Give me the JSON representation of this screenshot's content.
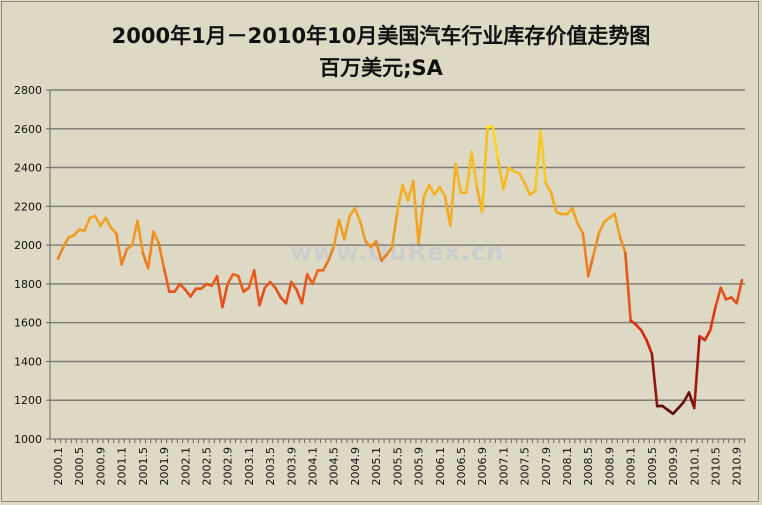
{
  "chart_data": {
    "type": "line",
    "title": "2000年1月－2010年10月美国汽车行业库存价值走势图",
    "subtitle": "百万美元;SA",
    "watermark": "www.QuRex.cn",
    "xlabel": "",
    "ylabel": "",
    "ylim": [
      1000,
      2800
    ],
    "yticks": [
      1000,
      1200,
      1400,
      1600,
      1800,
      2000,
      2200,
      2400,
      2600,
      2800
    ],
    "grid": true,
    "legend": "none",
    "x_start": "2000.1",
    "x_end": "2010.10",
    "xtick_labels": [
      "2000.1",
      "2000.5",
      "2000.9",
      "2001.1",
      "2001.5",
      "2001.9",
      "2002.1",
      "2002.5",
      "2002.9",
      "2003.1",
      "2003.5",
      "2003.9",
      "2004.1",
      "2004.5",
      "2004.9",
      "2005.1",
      "2005.5",
      "2005.9",
      "2006.1",
      "2006.5",
      "2006.9",
      "2007.1",
      "2007.5",
      "2007.9",
      "2008.1",
      "2008.5",
      "2008.9",
      "2009.1",
      "2009.5",
      "2009.9",
      "2010.1",
      "2010.5",
      "2010.9"
    ],
    "values": [
      1930,
      1990,
      2040,
      2050,
      2080,
      2075,
      2140,
      2150,
      2100,
      2140,
      2090,
      2060,
      1900,
      1980,
      2000,
      2125,
      1960,
      1880,
      2070,
      2010,
      1880,
      1760,
      1760,
      1800,
      1770,
      1735,
      1775,
      1775,
      1800,
      1790,
      1840,
      1680,
      1800,
      1850,
      1840,
      1760,
      1780,
      1870,
      1690,
      1780,
      1810,
      1780,
      1730,
      1700,
      1810,
      1770,
      1700,
      1850,
      1800,
      1870,
      1870,
      1920,
      1990,
      2130,
      2030,
      2150,
      2190,
      2120,
      2020,
      1990,
      2020,
      1920,
      1950,
      1990,
      2170,
      2310,
      2230,
      2330,
      2010,
      2250,
      2310,
      2260,
      2300,
      2250,
      2100,
      2420,
      2270,
      2270,
      2480,
      2300,
      2170,
      2610,
      2610,
      2440,
      2290,
      2400,
      2380,
      2370,
      2320,
      2260,
      2280,
      2590,
      2320,
      2270,
      2170,
      2160,
      2160,
      2190,
      2110,
      2060,
      1840,
      1950,
      2060,
      2120,
      2140,
      2160,
      2040,
      1960,
      1610,
      1590,
      1560,
      1510,
      1440,
      1170,
      1170,
      1150,
      1130,
      1160,
      1190,
      1240,
      1160,
      1530,
      1510,
      1560,
      1680,
      1780,
      1720,
      1730,
      1700,
      1820
    ],
    "colors": {
      "low": "#5a0a0a",
      "mid_low": "#d82010",
      "mid": "#e85a1c",
      "mid_high": "#f09a22",
      "high": "#ffe21a",
      "grid": "#808078",
      "background": "#ddd9c4"
    }
  }
}
